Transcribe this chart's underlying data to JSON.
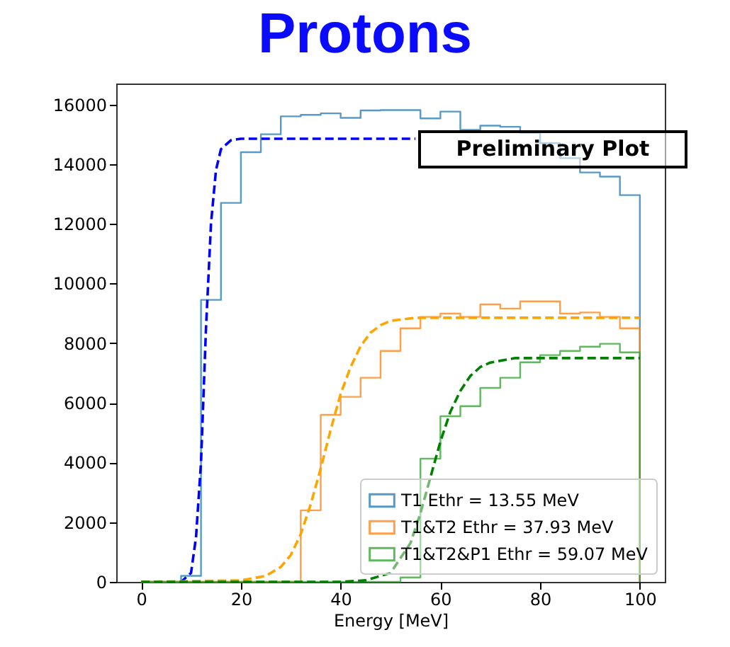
{
  "chart_data": {
    "type": "histogram",
    "title": "Protons",
    "xlabel": "Energy [MeV]",
    "bins": [
      0,
      4,
      8,
      12,
      16,
      20,
      24,
      28,
      32,
      36,
      40,
      44,
      48,
      52,
      56,
      60,
      64,
      68,
      72,
      76,
      80,
      84,
      88,
      92,
      96,
      100
    ],
    "series": [
      {
        "name": "T1 Ethr = 13.55 MeV",
        "color": "#1f77b4",
        "values": [
          0,
          0,
          200,
          9450,
          12700,
          14400,
          15000,
          15600,
          15650,
          15700,
          15550,
          15800,
          15810,
          15810,
          15530,
          15760,
          15150,
          15290,
          15250,
          15050,
          14700,
          14200,
          13720,
          13580,
          12960
        ]
      },
      {
        "name": "T1&T2 Ethr = 37.93 MeV",
        "color": "#ff7f0e",
        "values": [
          0,
          0,
          0,
          0,
          0,
          0,
          0,
          0,
          2400,
          5600,
          6200,
          6840,
          7740,
          8500,
          8880,
          8990,
          8880,
          9300,
          9160,
          9400,
          9400,
          8990,
          9030,
          8880,
          8500
        ]
      },
      {
        "name": "T1&T2&P1 Ethr = 59.07 MeV",
        "color": "#2ca02c",
        "values": [
          0,
          0,
          0,
          0,
          0,
          0,
          0,
          0,
          0,
          0,
          0,
          0,
          0,
          150,
          4130,
          5550,
          5890,
          6500,
          6840,
          7360,
          7600,
          7740,
          7880,
          7980,
          7690
        ]
      },
      {
        "type": "line",
        "color": "#0000ff",
        "line_style": "dashed",
        "x": [
          0,
          8,
          10,
          11,
          12,
          13,
          14,
          15,
          16,
          18,
          20,
          55
        ],
        "values": [
          0,
          0,
          300,
          1500,
          4000,
          8500,
          12000,
          13800,
          14500,
          14800,
          14850,
          14850
        ]
      },
      {
        "type": "line",
        "color": "#ffa500",
        "line_style": "dashed",
        "x": [
          0,
          20,
          25,
          28,
          30,
          32,
          34,
          36,
          38,
          40,
          42,
          44,
          46,
          48,
          50,
          55,
          100
        ],
        "values": [
          0,
          50,
          200,
          500,
          900,
          1600,
          2600,
          3800,
          5100,
          6300,
          7200,
          7900,
          8350,
          8600,
          8750,
          8850,
          8850
        ]
      },
      {
        "type": "line",
        "color": "#008000",
        "line_style": "dashed",
        "x": [
          0,
          40,
          45,
          50,
          54,
          56,
          58,
          60,
          62,
          64,
          66,
          68,
          70,
          75,
          100
        ],
        "values": [
          0,
          0,
          50,
          300,
          1300,
          2300,
          3500,
          4700,
          5700,
          6400,
          6900,
          7200,
          7350,
          7500,
          7500
        ]
      }
    ],
    "annotations": [
      "Preliminary Plot"
    ],
    "xlim": [
      -5,
      105
    ],
    "xticks": [
      0,
      20,
      40,
      60,
      80,
      100
    ],
    "ylim": [
      0,
      16700
    ],
    "yticks": [
      0,
      2000,
      4000,
      6000,
      8000,
      10000,
      12000,
      14000,
      16000
    ],
    "legend": "bottom right",
    "grid": false
  }
}
